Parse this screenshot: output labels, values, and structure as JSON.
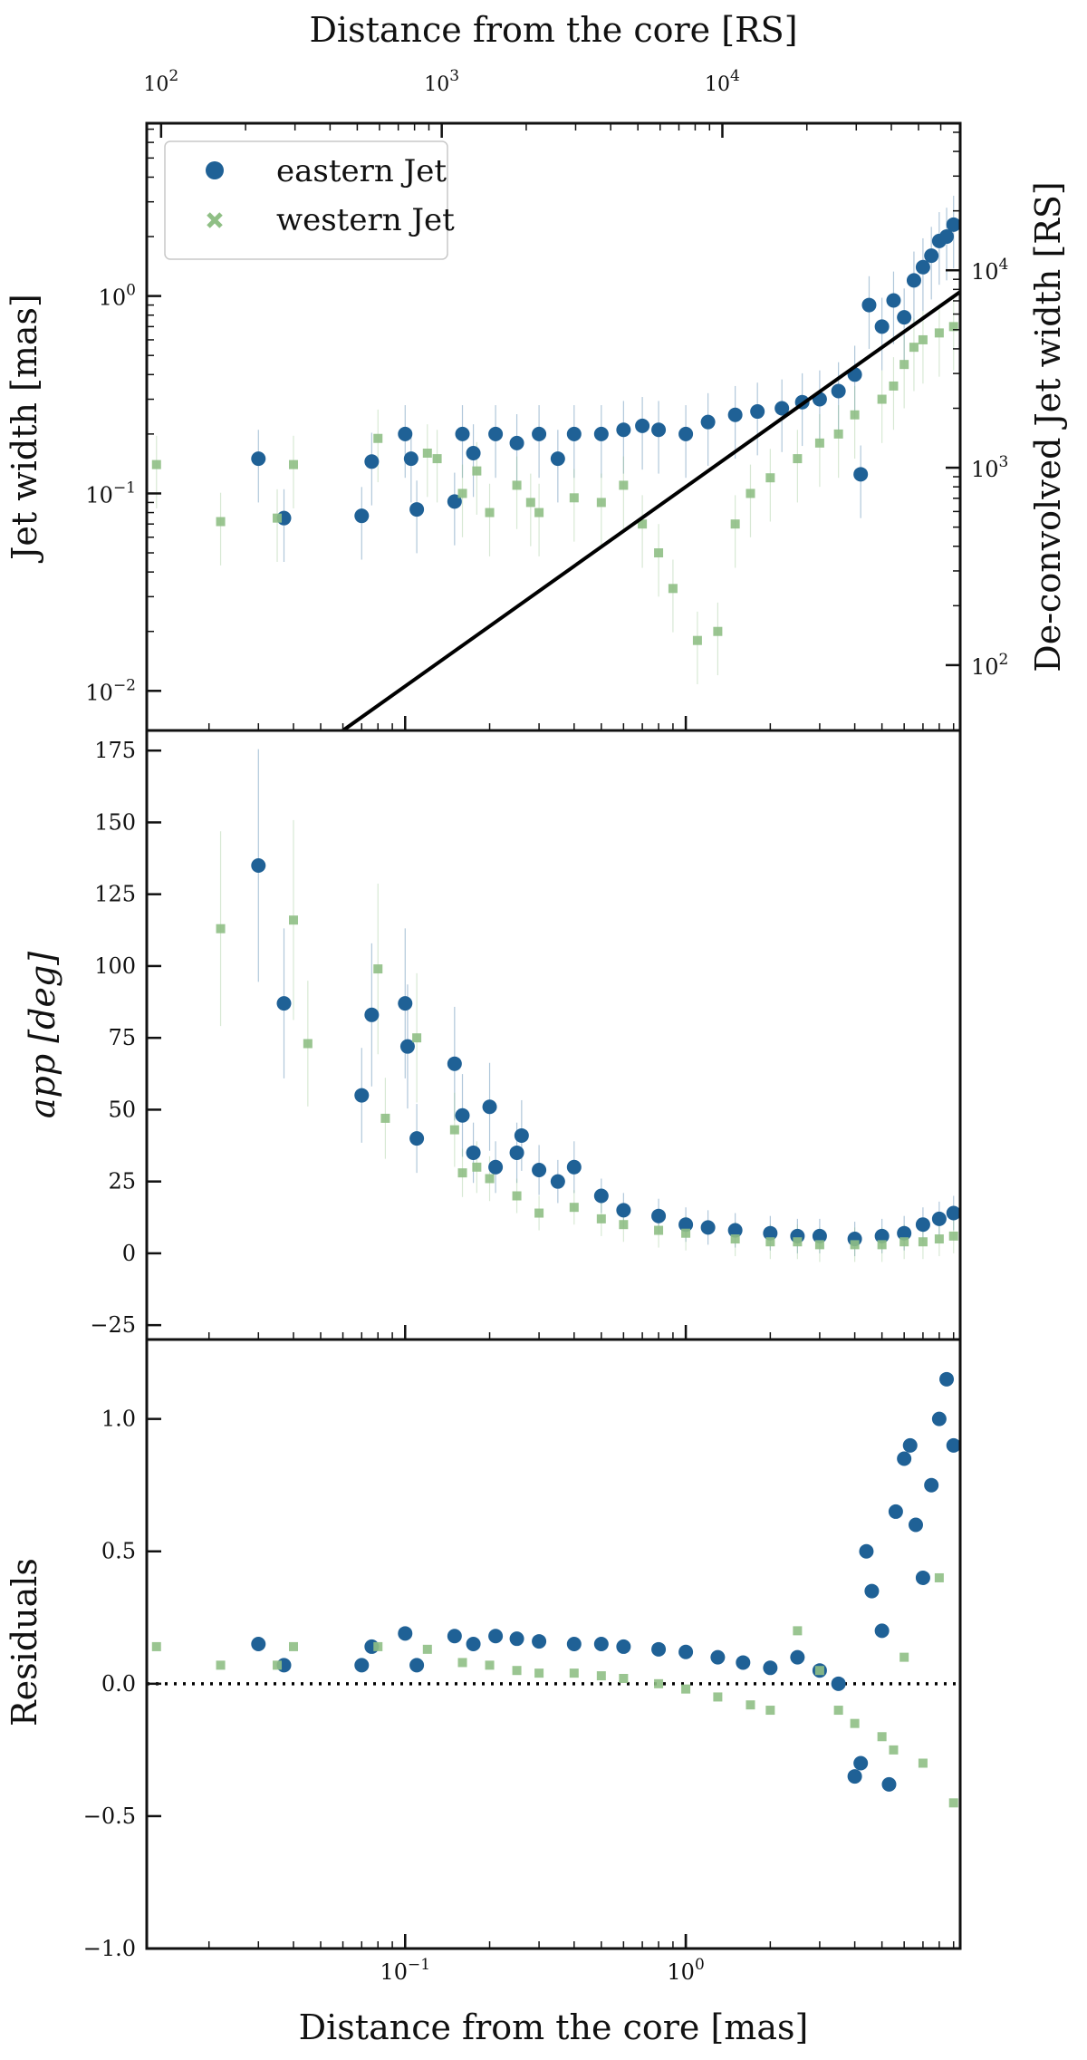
{
  "chart_data": [
    {
      "panel": "jet-width",
      "type": "scatter",
      "xscale": "log",
      "yscale": "log",
      "xlim": [
        0.012,
        9.5
      ],
      "ylim": [
        0.0063,
        7.5
      ],
      "ylabel": "Jet width [mas]",
      "y2label": "De-convolved Jet width [RS]",
      "top_xlabel": "Distance from the core [RS]",
      "top_ticks": [
        {
          "value": 100,
          "base": "10",
          "exp": "2"
        },
        {
          "value": 1000,
          "base": "10",
          "exp": "3"
        },
        {
          "value": 10000,
          "base": "10",
          "exp": "4"
        }
      ],
      "yticks": [
        {
          "value": 0.01,
          "base": "10",
          "exp": "−2"
        },
        {
          "value": 0.1,
          "base": "10",
          "exp": "−1"
        },
        {
          "value": 1,
          "base": "10",
          "exp": "0"
        }
      ],
      "y2ticks": [
        {
          "value": 100,
          "base": "10",
          "exp": "2"
        },
        {
          "value": 1000,
          "base": "10",
          "exp": "3"
        },
        {
          "value": 10000,
          "base": "10",
          "exp": "4"
        }
      ],
      "legend": {
        "position": "top-left",
        "entries": [
          "eastern Jet",
          "western Jet"
        ]
      },
      "fit_line": {
        "x": [
          0.06,
          9.5
        ],
        "y": [
          0.0063,
          1.05
        ]
      },
      "series": [
        {
          "name": "eastern Jet",
          "marker": "circle",
          "color": "#1f6196",
          "x": [
            0.03,
            0.037,
            0.07,
            0.076,
            0.1,
            0.105,
            0.11,
            0.15,
            0.16,
            0.175,
            0.21,
            0.25,
            0.3,
            0.35,
            0.4,
            0.5,
            0.6,
            0.7,
            0.8,
            1.0,
            1.2,
            1.5,
            1.8,
            2.2,
            2.6,
            3.0,
            3.5,
            4.0,
            4.2,
            4.5,
            5.0,
            5.5,
            6.0,
            6.5,
            7.0,
            7.5,
            8.0,
            8.5,
            9.0
          ],
          "y": [
            0.15,
            0.075,
            0.077,
            0.145,
            0.2,
            0.15,
            0.083,
            0.091,
            0.2,
            0.16,
            0.2,
            0.18,
            0.2,
            0.15,
            0.2,
            0.2,
            0.21,
            0.22,
            0.21,
            0.2,
            0.23,
            0.25,
            0.26,
            0.27,
            0.29,
            0.3,
            0.33,
            0.4,
            0.125,
            0.9,
            0.7,
            0.95,
            0.78,
            1.2,
            1.4,
            1.6,
            1.9,
            2.0,
            2.3
          ]
        },
        {
          "name": "western Jet",
          "marker": "x",
          "color": "#8fbf85",
          "x": [
            0.013,
            0.022,
            0.035,
            0.04,
            0.08,
            0.12,
            0.13,
            0.16,
            0.18,
            0.2,
            0.25,
            0.28,
            0.3,
            0.4,
            0.5,
            0.6,
            0.7,
            0.8,
            0.9,
            1.1,
            1.3,
            1.5,
            1.7,
            2.0,
            2.5,
            3.0,
            3.5,
            4.0,
            5.0,
            5.5,
            6.0,
            6.5,
            7.0,
            8.0,
            9.0
          ],
          "y": [
            0.14,
            0.072,
            0.075,
            0.14,
            0.19,
            0.16,
            0.15,
            0.1,
            0.13,
            0.08,
            0.11,
            0.09,
            0.08,
            0.095,
            0.09,
            0.11,
            0.07,
            0.05,
            0.033,
            0.018,
            0.02,
            0.07,
            0.1,
            0.12,
            0.15,
            0.18,
            0.2,
            0.25,
            0.3,
            0.35,
            0.45,
            0.55,
            0.6,
            0.65,
            0.7
          ]
        }
      ]
    },
    {
      "panel": "opening-angle",
      "type": "scatter",
      "xscale": "log",
      "yscale": "linear",
      "xlim": [
        0.012,
        9.5
      ],
      "ylim": [
        -30,
        182
      ],
      "ylabel": "app [deg]",
      "yticks": [
        "−25",
        "0",
        "25",
        "50",
        "75",
        "100",
        "125",
        "150",
        "175"
      ],
      "series": [
        {
          "name": "eastern Jet",
          "color": "#1f6196",
          "x": [
            0.03,
            0.037,
            0.07,
            0.076,
            0.1,
            0.102,
            0.11,
            0.15,
            0.16,
            0.175,
            0.2,
            0.21,
            0.25,
            0.26,
            0.3,
            0.35,
            0.4,
            0.5,
            0.6,
            0.8,
            1.0,
            1.2,
            1.5,
            2.0,
            2.5,
            3.0,
            4.0,
            5.0,
            6.0,
            7.0,
            8.0,
            9.0
          ],
          "y": [
            135,
            87,
            55,
            83,
            87,
            72,
            40,
            66,
            48,
            35,
            51,
            30,
            35,
            41,
            29,
            25,
            30,
            20,
            15,
            13,
            10,
            9,
            8,
            7,
            6,
            6,
            5,
            6,
            7,
            10,
            12,
            14
          ]
        },
        {
          "name": "western Jet",
          "color": "#8fbf85",
          "x": [
            0.022,
            0.04,
            0.045,
            0.08,
            0.085,
            0.11,
            0.15,
            0.16,
            0.18,
            0.2,
            0.25,
            0.3,
            0.4,
            0.5,
            0.6,
            0.8,
            1.0,
            1.5,
            2.0,
            2.5,
            3.0,
            4.0,
            5.0,
            6.0,
            7.0,
            8.0,
            9.0
          ],
          "y": [
            113,
            116,
            73,
            99,
            47,
            75,
            43,
            28,
            30,
            26,
            20,
            14,
            16,
            12,
            10,
            8,
            7,
            5,
            4,
            4,
            3,
            3,
            3,
            4,
            4,
            5,
            6
          ]
        }
      ]
    },
    {
      "panel": "residuals",
      "type": "scatter",
      "xscale": "log",
      "yscale": "linear",
      "xlim": [
        0.012,
        9.5
      ],
      "ylim": [
        -1.0,
        1.3
      ],
      "ylabel": "Residuals",
      "xlabel": "Distance from the core [mas]",
      "xticks": [
        {
          "value": 0.1,
          "base": "10",
          "exp": "−1"
        },
        {
          "value": 1,
          "base": "10",
          "exp": "0"
        }
      ],
      "yticks": [
        "−1.0",
        "−0.5",
        "0.0",
        "0.5",
        "1.0"
      ],
      "zero_line": {
        "y": 0.0,
        "style": "dotted"
      },
      "series": [
        {
          "name": "eastern Jet",
          "color": "#1f6196",
          "x": [
            0.03,
            0.037,
            0.07,
            0.076,
            0.1,
            0.11,
            0.15,
            0.175,
            0.21,
            0.25,
            0.3,
            0.4,
            0.5,
            0.6,
            0.8,
            1.0,
            1.3,
            1.6,
            2.0,
            2.5,
            3.0,
            3.5,
            4.0,
            4.2,
            4.4,
            4.6,
            5.0,
            5.3,
            5.6,
            6.0,
            6.3,
            6.6,
            7.0,
            7.5,
            8.0,
            8.5,
            9.0
          ],
          "y": [
            0.15,
            0.07,
            0.07,
            0.14,
            0.19,
            0.07,
            0.18,
            0.15,
            0.18,
            0.17,
            0.16,
            0.15,
            0.15,
            0.14,
            0.13,
            0.12,
            0.1,
            0.08,
            0.06,
            0.1,
            0.05,
            0.0,
            -0.35,
            -0.3,
            0.5,
            0.35,
            0.2,
            -0.38,
            0.65,
            0.85,
            0.9,
            0.6,
            0.4,
            0.75,
            1.0,
            1.15,
            0.9
          ]
        },
        {
          "name": "western Jet",
          "color": "#8fbf85",
          "x": [
            0.013,
            0.022,
            0.035,
            0.04,
            0.08,
            0.12,
            0.16,
            0.2,
            0.25,
            0.3,
            0.4,
            0.5,
            0.6,
            0.8,
            1.0,
            1.3,
            1.7,
            2.0,
            2.5,
            3.0,
            3.5,
            4.0,
            5.0,
            5.5,
            6.0,
            7.0,
            8.0,
            9.0
          ],
          "y": [
            0.14,
            0.07,
            0.07,
            0.14,
            0.14,
            0.13,
            0.08,
            0.07,
            0.05,
            0.04,
            0.04,
            0.03,
            0.02,
            0.0,
            -0.02,
            -0.05,
            -0.08,
            -0.1,
            0.2,
            0.05,
            -0.1,
            -0.15,
            -0.2,
            -0.25,
            0.1,
            -0.3,
            0.4,
            -0.45
          ]
        }
      ]
    }
  ]
}
